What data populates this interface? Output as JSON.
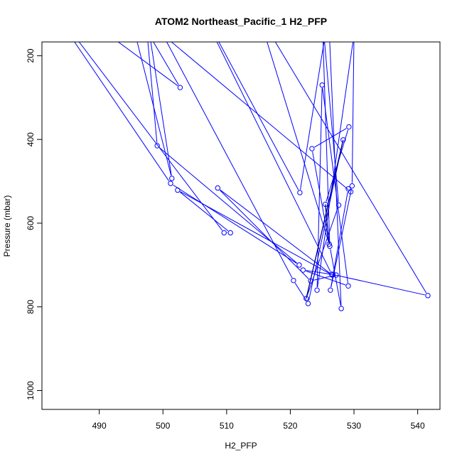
{
  "chart_data": {
    "type": "line",
    "title": "ATOM2 Northeast_Pacific_1 H2_PFP",
    "xlabel": "H2_PFP",
    "ylabel": "Pressure (mbar)",
    "xlim": [
      481,
      543.5
    ],
    "ylim": [
      1045,
      167
    ],
    "y_reversed": true,
    "x_ticks": [
      490,
      500,
      510,
      520,
      530,
      540
    ],
    "y_ticks": [
      200,
      400,
      600,
      800,
      1000
    ],
    "grid": false,
    "line_color": "#0000ff",
    "series": [
      {
        "points": [
          [
            488.8,
            120
          ],
          [
            502.7,
            276
          ],
          [
            494.0,
            50
          ],
          [
            501.4,
            493
          ],
          [
            497.0,
            60
          ],
          [
            499.1,
            415
          ],
          [
            521.4,
            700
          ],
          [
            501.2,
            505
          ],
          [
            480.0,
            30
          ],
          [
            509.6,
            623
          ],
          [
            510.6,
            623
          ],
          [
            502.3,
            521
          ],
          [
            526.6,
            724
          ],
          [
            508.6,
            516
          ],
          [
            523.2,
            738
          ],
          [
            527.2,
            724
          ],
          [
            522.0,
            712
          ],
          [
            529.1,
            750
          ],
          [
            525.0,
            270
          ],
          [
            524.2,
            760
          ],
          [
            530.0,
            150
          ],
          [
            529.7,
            511
          ],
          [
            526.3,
            760
          ],
          [
            529.1,
            518
          ],
          [
            529.5,
            525
          ],
          [
            500.0,
            150
          ],
          [
            520.5,
            737
          ],
          [
            522.8,
            792
          ],
          [
            528.3,
            401
          ],
          [
            522.5,
            780
          ],
          [
            527.6,
            557
          ],
          [
            525.0,
            100
          ],
          [
            526.2,
            655
          ],
          [
            528.0,
            804
          ],
          [
            526.0,
            100
          ],
          [
            521.5,
            527
          ],
          [
            505.0,
            60
          ],
          [
            526.5,
            722
          ],
          [
            541.6,
            773
          ],
          [
            515.0,
            100
          ],
          [
            526.1,
            650
          ],
          [
            523.4,
            422
          ],
          [
            529.2,
            370
          ],
          [
            525.5,
            555
          ]
        ]
      }
    ],
    "dark_segments": [
      [
        [
          528.3,
          401
        ],
        [
          522.5,
          780
        ]
      ],
      [
        [
          525.5,
          555
        ],
        [
          526.1,
          650
        ]
      ]
    ]
  }
}
